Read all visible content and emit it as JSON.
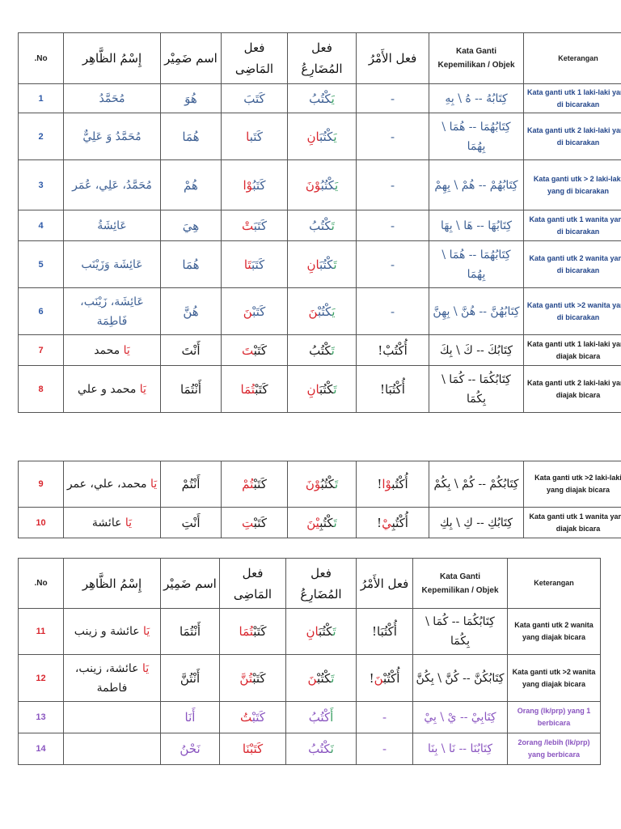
{
  "colors": {
    "b": "#3d5f93",
    "g": "#3aa064",
    "r": "#d9262e",
    "k": "#1a1a1a",
    "p": "#8a55c0",
    "ket_blue": "#23468a",
    "num_blue": "#2e5aa8"
  },
  "headers": {
    "no": ".No",
    "ism_zhahir": "إِسْمُ الظَّاهِر",
    "ism_dhamir": "اسم ضَمِيْر",
    "fiil_madhi": "فعل المَاضِى",
    "fiil_mudhari": "فعل المُضَارِعُ",
    "fiil_amr": "فعل الأَمْرُ",
    "kata_ganti": "Kata Ganti Kepemilikan / Objek",
    "keterangan": "Keterangan"
  },
  "tables": [
    {
      "has_header": true,
      "rows": [
        {
          "no": "1",
          "nc": "num_blue",
          "kc": "ket_blue",
          "name": [
            [
              "b",
              "مُحَمَّدُ"
            ]
          ],
          "dhamir": [
            [
              "b",
              "هُوَ"
            ]
          ],
          "madhi": [
            [
              "b",
              "كَتَبَ"
            ]
          ],
          "mudhari": [
            [
              "g",
              "يَ"
            ],
            [
              "b",
              "كْتُبُ"
            ]
          ],
          "amr": [
            [
              "b",
              "-"
            ]
          ],
          "kata": [
            [
              "b",
              "كِتَابُهُ -- هُ \\ بِهِ"
            ]
          ],
          "ket": "Kata ganti utk 1 laki-laki yang di bicarakan"
        },
        {
          "no": "2",
          "nc": "num_blue",
          "kc": "ket_blue",
          "name": [
            [
              "b",
              "مُحَمَّدُ وَ عَلِيٌّ"
            ]
          ],
          "dhamir": [
            [
              "b",
              "هُمَا"
            ]
          ],
          "madhi": [
            [
              "b",
              "كَتَب"
            ],
            [
              "r",
              "ا"
            ]
          ],
          "mudhari": [
            [
              "g",
              "يَ"
            ],
            [
              "b",
              "كْتُبَ"
            ],
            [
              "r",
              "انِ"
            ]
          ],
          "amr": [
            [
              "b",
              "-"
            ]
          ],
          "kata": [
            [
              "b",
              "كِتَابُهُمَا -- هُمَا \\ بِهُمَا"
            ]
          ],
          "ket": "Kata ganti utk 2 laki-laki yang di bicarakan"
        },
        {
          "no": "3",
          "nc": "num_blue",
          "kc": "ket_blue",
          "name": [
            [
              "b",
              "مُحَمَّدُ، عَلِي، عُمَر"
            ]
          ],
          "dhamir": [
            [
              "b",
              "هُمْ"
            ]
          ],
          "madhi": [
            [
              "b",
              "كَتَبُ"
            ],
            [
              "r",
              "وْا"
            ]
          ],
          "mudhari": [
            [
              "g",
              "يَ"
            ],
            [
              "b",
              "كْتُبُ"
            ],
            [
              "r",
              "وْنَ"
            ]
          ],
          "amr": [
            [
              "b",
              "-"
            ]
          ],
          "kata": [
            [
              "b",
              "كِتَابُهُمْ -- هُمْ \\ بِهِمْ"
            ]
          ],
          "ket": "Kata ganti utk > 2 laki-laki yang di bicarakan"
        },
        {
          "no": "4",
          "nc": "num_blue",
          "kc": "ket_blue",
          "name": [
            [
              "b",
              "عَائِشَةُ"
            ]
          ],
          "dhamir": [
            [
              "b",
              "هِيَ"
            ]
          ],
          "madhi": [
            [
              "b",
              "كَتَبَ"
            ],
            [
              "r",
              "تْ"
            ]
          ],
          "mudhari": [
            [
              "g",
              "تَ"
            ],
            [
              "b",
              "كْتُبُ"
            ]
          ],
          "amr": [
            [
              "b",
              "-"
            ]
          ],
          "kata": [
            [
              "b",
              "كِتَابُهَا -- هَا \\ بِهَا"
            ]
          ],
          "ket": "Kata ganti utk 1 wanita yang di bicarakan"
        },
        {
          "no": "5",
          "nc": "num_blue",
          "kc": "ket_blue",
          "name": [
            [
              "b",
              "عَائِشَة وَزَيْنَب"
            ]
          ],
          "dhamir": [
            [
              "b",
              "هُمَا"
            ]
          ],
          "madhi": [
            [
              "b",
              "كَتَبَ"
            ],
            [
              "r",
              "تَا"
            ]
          ],
          "mudhari": [
            [
              "g",
              "تَ"
            ],
            [
              "b",
              "كْتُبَ"
            ],
            [
              "r",
              "انِ"
            ]
          ],
          "amr": [
            [
              "b",
              "-"
            ]
          ],
          "kata": [
            [
              "b",
              "كِتَابُهُمَا -- هُمَا \\ بِهُمَا"
            ]
          ],
          "ket": "Kata ganti utk 2 wanita yang di bicarakan"
        },
        {
          "no": "6",
          "nc": "num_blue",
          "kc": "ket_blue",
          "name": [
            [
              "b",
              "عَائِشَة، زَيْنَب، فَاطِمَة"
            ]
          ],
          "dhamir": [
            [
              "b",
              "هُنَّ"
            ]
          ],
          "madhi": [
            [
              "b",
              "كَتَبْ"
            ],
            [
              "r",
              "نَ"
            ]
          ],
          "mudhari": [
            [
              "g",
              "يَ"
            ],
            [
              "b",
              "كْتُبْ"
            ],
            [
              "r",
              "نَ"
            ]
          ],
          "amr": [
            [
              "b",
              "-"
            ]
          ],
          "kata": [
            [
              "b",
              "كِتَابُهُنَّ -- هُنَّ \\ بِهِنَّ"
            ]
          ],
          "ket": "Kata ganti utk >2 wanita yang di bicarakan"
        },
        {
          "no": "7",
          "nc": "r",
          "kc": "k",
          "name": [
            [
              "r",
              "يَا"
            ],
            [
              "k",
              " محمد"
            ]
          ],
          "dhamir": [
            [
              "k",
              "أَنْتَ"
            ]
          ],
          "madhi": [
            [
              "k",
              "كَتَبْ"
            ],
            [
              "r",
              "تَ"
            ]
          ],
          "mudhari": [
            [
              "g",
              "تَ"
            ],
            [
              "k",
              "كْتُبُ"
            ]
          ],
          "amr": [
            [
              "k",
              "أُكْتُبْ!"
            ]
          ],
          "kata": [
            [
              "k",
              "كِتَابُكَ -- كَ \\ بِكَ"
            ]
          ],
          "ket": "Kata ganti utk 1 laki-laki yang diajak bicara"
        },
        {
          "no": "8",
          "nc": "r",
          "kc": "k",
          "name": [
            [
              "r",
              "يَا"
            ],
            [
              "k",
              " محمد و علي"
            ]
          ],
          "dhamir": [
            [
              "k",
              "أَنْتُمَا"
            ]
          ],
          "madhi": [
            [
              "k",
              "كَتَبْ"
            ],
            [
              "r",
              "تُمَا"
            ]
          ],
          "mudhari": [
            [
              "g",
              "تَ"
            ],
            [
              "k",
              "كْتُبَ"
            ],
            [
              "r",
              "انِ"
            ]
          ],
          "amr": [
            [
              "k",
              "أُكْتُبَا!"
            ]
          ],
          "kata": [
            [
              "k",
              "كِتَابُكُمَا -- كُمَا \\ بِكُمَا"
            ]
          ],
          "ket": "Kata ganti utk 2 laki-laki yang diajak bicara"
        }
      ]
    },
    {
      "has_header": false,
      "rows": [
        {
          "no": "9",
          "nc": "r",
          "kc": "k",
          "name": [
            [
              "r",
              "يَا"
            ],
            [
              "k",
              " محمد، علي، عمر"
            ]
          ],
          "dhamir": [
            [
              "k",
              "أَنْتُمْ"
            ]
          ],
          "madhi": [
            [
              "k",
              "كَتَبْ"
            ],
            [
              "r",
              "تُمْ"
            ]
          ],
          "mudhari": [
            [
              "g",
              "تَ"
            ],
            [
              "k",
              "كْتُبُ"
            ],
            [
              "r",
              "وْنَ"
            ]
          ],
          "amr": [
            [
              "k",
              "أُكْتُب"
            ],
            [
              "r",
              "وْا"
            ],
            [
              "k",
              "!"
            ]
          ],
          "kata": [
            [
              "k",
              "كِتَابُكُمْ -- كُمْ \\ بِكُمْ"
            ]
          ],
          "ket": "Kata ganti utk >2 laki-laki yang diajak bicara"
        },
        {
          "no": "10",
          "nc": "r",
          "kc": "k",
          "name": [
            [
              "r",
              "يَا"
            ],
            [
              "k",
              " عائشة"
            ]
          ],
          "dhamir": [
            [
              "k",
              "أَنْتِ"
            ]
          ],
          "madhi": [
            [
              "k",
              "كَتَبْ"
            ],
            [
              "r",
              "تِ"
            ]
          ],
          "mudhari": [
            [
              "g",
              "تَ"
            ],
            [
              "k",
              "كْتُبِ"
            ],
            [
              "r",
              "يْنَ"
            ]
          ],
          "amr": [
            [
              "k",
              "أُكْتُبِ"
            ],
            [
              "r",
              "يْ"
            ],
            [
              "k",
              "!"
            ]
          ],
          "kata": [
            [
              "k",
              "كِتَابُكِ -- كِ \\ بِكِ"
            ]
          ],
          "ket": "Kata ganti utk 1 wanita yang diajak bicara"
        }
      ]
    },
    {
      "has_header": true,
      "rows": [
        {
          "no": "11",
          "nc": "r",
          "kc": "k",
          "name": [
            [
              "r",
              "يَا"
            ],
            [
              "k",
              " عائشة و زينب"
            ]
          ],
          "dhamir": [
            [
              "k",
              "أَنْتُمَا"
            ]
          ],
          "madhi": [
            [
              "k",
              "كَتَبْ"
            ],
            [
              "r",
              "تُمَا"
            ]
          ],
          "mudhari": [
            [
              "g",
              "تَ"
            ],
            [
              "k",
              "كْتُبَ"
            ],
            [
              "r",
              "انِ"
            ]
          ],
          "amr": [
            [
              "k",
              "أُكْتُبَا!"
            ]
          ],
          "kata": [
            [
              "k",
              "كِتَابُكُمَا -- كُمَا \\ بِكُمَا"
            ]
          ],
          "ket": "Kata ganti utk 2 wanita yang diajak bicara"
        },
        {
          "no": "12",
          "nc": "r",
          "kc": "k",
          "name": [
            [
              "r",
              "يَا"
            ],
            [
              "k",
              " عائشة، زينب، فاطمة"
            ]
          ],
          "dhamir": [
            [
              "k",
              "أَنْتُنَّ"
            ]
          ],
          "madhi": [
            [
              "k",
              "كَتَبْ"
            ],
            [
              "r",
              "تُنَّ"
            ]
          ],
          "mudhari": [
            [
              "g",
              "تَ"
            ],
            [
              "k",
              "كْتُبْ"
            ],
            [
              "r",
              "نَ"
            ]
          ],
          "amr": [
            [
              "k",
              "أُكْتُبْ"
            ],
            [
              "r",
              "نَ"
            ],
            [
              "k",
              "!"
            ]
          ],
          "kata": [
            [
              "k",
              "كِتَابُكُنَّ -- كُنَّ \\ بِكُنَّ"
            ]
          ],
          "ket": "Kata ganti utk >2 wanita yang diajak bicara"
        },
        {
          "no": "13",
          "nc": "p",
          "kc": "p",
          "name": [],
          "dhamir": [
            [
              "p",
              "أَنَا"
            ]
          ],
          "madhi": [
            [
              "p",
              "كَتَبْ"
            ],
            [
              "r",
              "تُ"
            ]
          ],
          "mudhari": [
            [
              "g",
              "أَ"
            ],
            [
              "p",
              "كْتُبُ"
            ]
          ],
          "amr": [
            [
              "p",
              "-"
            ]
          ],
          "kata": [
            [
              "p",
              "كِتَابِيْ -- يْ \\ بِيْ"
            ]
          ],
          "ket": "Orang (lk/prp) yang 1 berbicara"
        },
        {
          "no": "14",
          "nc": "p",
          "kc": "p",
          "name": [],
          "dhamir": [
            [
              "p",
              "نَحْنُ"
            ]
          ],
          "madhi": [
            [
              "r",
              "كَتَبْنَا"
            ]
          ],
          "mudhari": [
            [
              "g",
              "نَ"
            ],
            [
              "p",
              "كْتُبُ"
            ]
          ],
          "amr": [
            [
              "p",
              "-"
            ]
          ],
          "kata": [
            [
              "p",
              "كِتَابُنَا -- نَا \\ بِنَا"
            ]
          ],
          "ket": "2orang /lebih (lk/prp) yang berbicara"
        }
      ]
    }
  ]
}
